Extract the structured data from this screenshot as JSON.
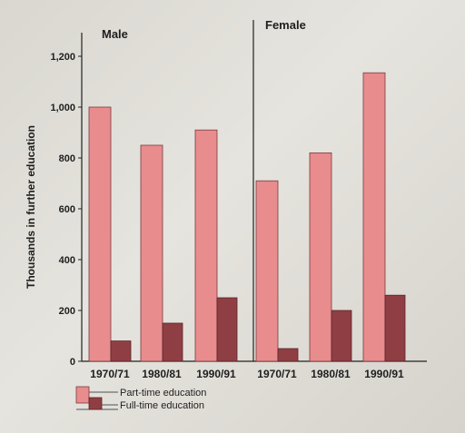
{
  "chart_data": {
    "type": "bar",
    "ylabel": "Thousands in further education",
    "ylim": [
      0,
      1200
    ],
    "yticks": [
      0,
      200,
      400,
      600,
      800,
      "1,000",
      "1,200"
    ],
    "panels": [
      "Male",
      "Female"
    ],
    "categories": [
      "1970/71",
      "1980/81",
      "1990/91",
      "1970/71",
      "1980/81",
      "1990/91"
    ],
    "series": [
      {
        "name": "Part-time education",
        "values": [
          1000,
          850,
          910,
          710,
          820,
          1135
        ]
      },
      {
        "name": "Full-time education",
        "values": [
          80,
          150,
          250,
          50,
          200,
          260
        ]
      }
    ],
    "legend_position": "bottom-left",
    "colors": {
      "part_time": "#e88c8e",
      "full_time": "#8f3f44"
    }
  }
}
